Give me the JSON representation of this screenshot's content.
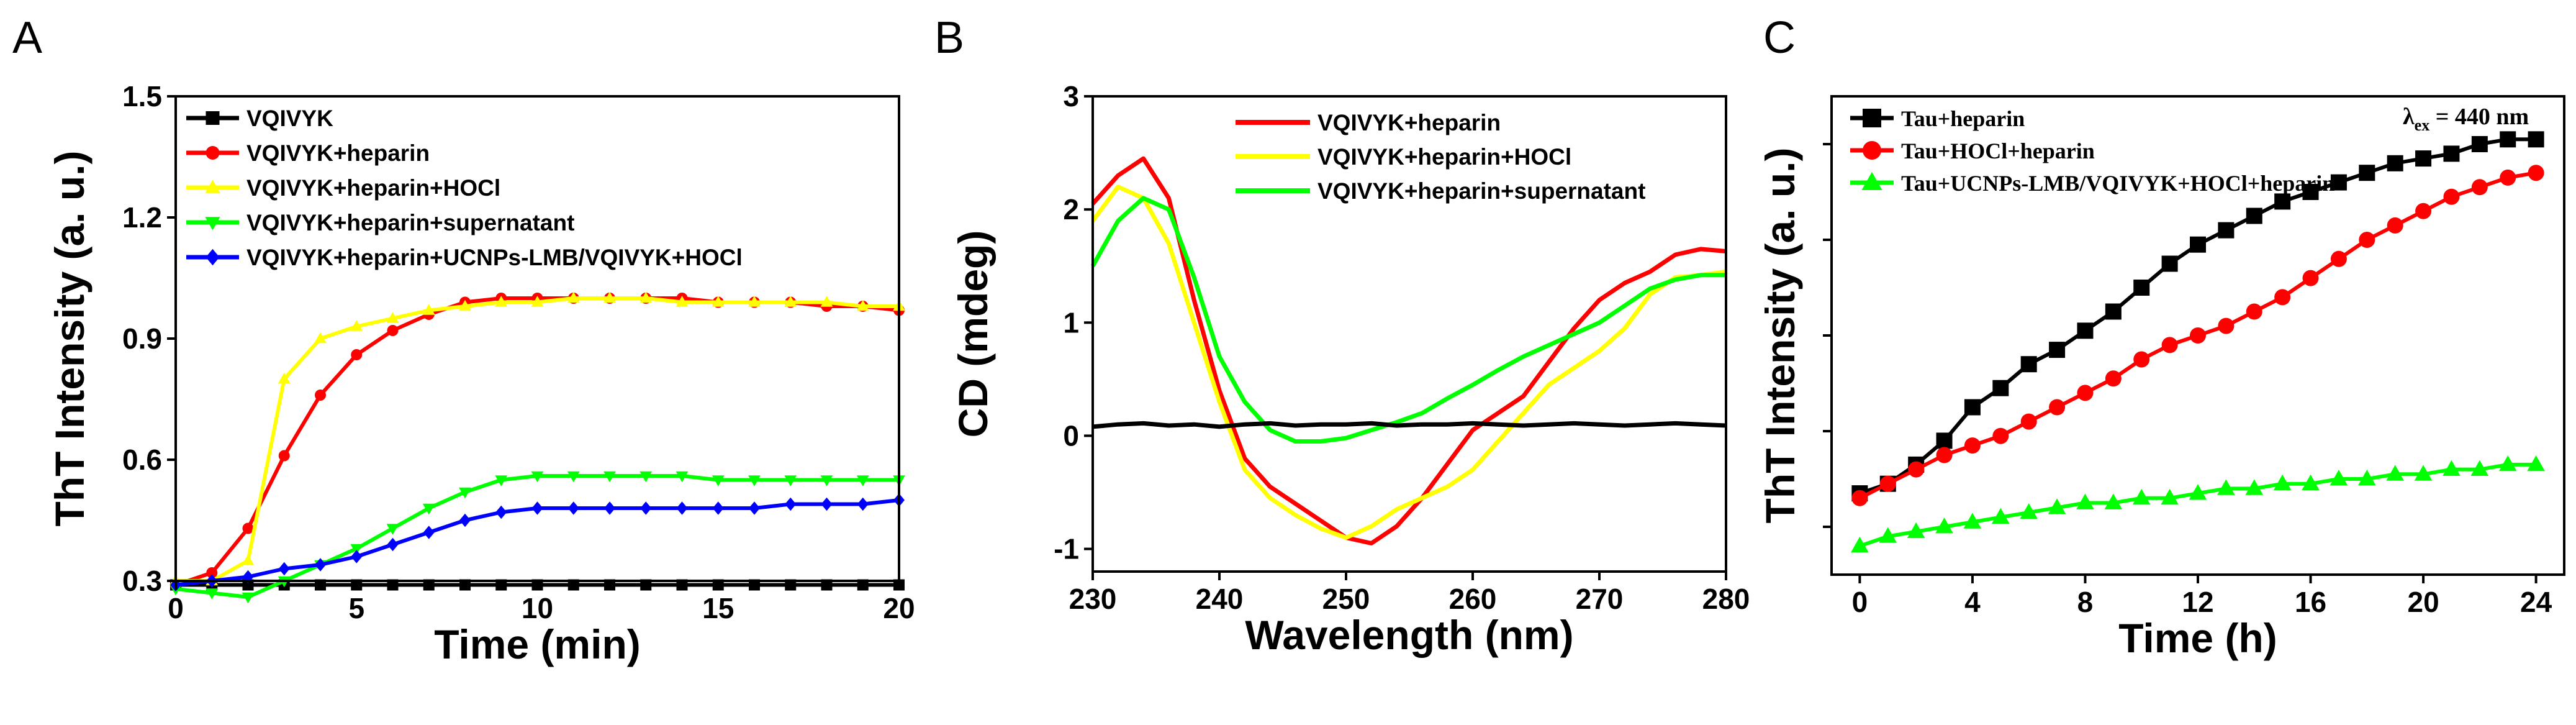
{
  "panels": [
    "A",
    "B",
    "C"
  ],
  "annotation_C": "λ",
  "annotation_C_sub": "ex",
  "annotation_C_value": " = 440 nm",
  "chart_data": [
    {
      "id": "A",
      "type": "line",
      "xlabel": "Time (min)",
      "ylabel": "ThT Intensity (a. u.)",
      "xlim": [
        0,
        20
      ],
      "ylim": [
        0.3,
        1.5
      ],
      "xticks": [
        0,
        5,
        10,
        15,
        20
      ],
      "yticks": [
        0.3,
        0.6,
        0.9,
        1.2,
        1.5
      ],
      "ytick_labels": [
        "0.3",
        "0.6",
        "0.9",
        "1.2",
        "1.5"
      ],
      "legend_position": "top-left",
      "x": [
        0,
        1,
        2,
        3,
        4,
        5,
        6,
        7,
        8,
        9,
        10,
        11,
        12,
        13,
        14,
        15,
        16,
        17,
        18,
        19,
        20
      ],
      "series": [
        {
          "name": "VQIVYK",
          "color": "#000000",
          "marker": "square",
          "values": [
            0.29,
            0.29,
            0.29,
            0.29,
            0.29,
            0.29,
            0.29,
            0.29,
            0.29,
            0.29,
            0.29,
            0.29,
            0.29,
            0.29,
            0.29,
            0.29,
            0.29,
            0.29,
            0.29,
            0.29,
            0.29
          ]
        },
        {
          "name": "VQIVYK+heparin",
          "color": "#ff0000",
          "marker": "circle",
          "values": [
            0.29,
            0.32,
            0.43,
            0.61,
            0.76,
            0.86,
            0.92,
            0.96,
            0.99,
            1.0,
            1.0,
            1.0,
            1.0,
            1.0,
            1.0,
            0.99,
            0.99,
            0.99,
            0.98,
            0.98,
            0.97
          ]
        },
        {
          "name": "VQIVYK+heparin+HOCl",
          "color": "#ffff00",
          "marker": "triangle-up",
          "values": [
            0.3,
            0.3,
            0.35,
            0.8,
            0.9,
            0.93,
            0.95,
            0.97,
            0.98,
            0.99,
            0.99,
            1.0,
            1.0,
            1.0,
            0.99,
            0.99,
            0.99,
            0.99,
            0.99,
            0.98,
            0.98
          ]
        },
        {
          "name": "VQIVYK+heparin+supernatant",
          "color": "#00ff00",
          "marker": "triangle-down",
          "values": [
            0.28,
            0.27,
            0.26,
            0.3,
            0.34,
            0.38,
            0.43,
            0.48,
            0.52,
            0.55,
            0.56,
            0.56,
            0.56,
            0.56,
            0.56,
            0.55,
            0.55,
            0.55,
            0.55,
            0.55,
            0.55
          ]
        },
        {
          "name": "VQIVYK+heparin+UCNPs-LMB/VQIVYK+HOCl",
          "color": "#0000ff",
          "marker": "diamond",
          "values": [
            0.29,
            0.3,
            0.31,
            0.33,
            0.34,
            0.36,
            0.39,
            0.42,
            0.45,
            0.47,
            0.48,
            0.48,
            0.48,
            0.48,
            0.48,
            0.48,
            0.48,
            0.49,
            0.49,
            0.49,
            0.5
          ]
        }
      ]
    },
    {
      "id": "B",
      "type": "line",
      "xlabel": "Wavelength (nm)",
      "ylabel": "CD (mdeg)",
      "xlim": [
        230,
        280
      ],
      "ylim": [
        -1.2,
        3
      ],
      "xticks": [
        230,
        240,
        250,
        260,
        270,
        280
      ],
      "yticks": [
        -1,
        0,
        1,
        2,
        3
      ],
      "ytick_labels": [
        "-1",
        "0",
        "1",
        "2",
        "3"
      ],
      "legend_position": "top-right",
      "x": [
        230,
        232,
        234,
        236,
        238,
        240,
        242,
        244,
        246,
        248,
        250,
        252,
        254,
        256,
        258,
        260,
        262,
        264,
        266,
        268,
        270,
        272,
        274,
        276,
        278,
        280
      ],
      "series": [
        {
          "name": "VQIVYK+heparin",
          "color": "#ff0000",
          "in_legend": true,
          "values": [
            2.05,
            2.3,
            2.45,
            2.1,
            1.2,
            0.4,
            -0.2,
            -0.45,
            -0.6,
            -0.75,
            -0.9,
            -0.95,
            -0.8,
            -0.55,
            -0.25,
            0.05,
            0.2,
            0.35,
            0.65,
            0.95,
            1.2,
            1.35,
            1.45,
            1.6,
            1.65,
            1.63
          ]
        },
        {
          "name": "VQIVYK+heparin+HOCl",
          "color": "#ffff00",
          "in_legend": true,
          "values": [
            1.9,
            2.2,
            2.1,
            1.7,
            1.0,
            0.3,
            -0.3,
            -0.55,
            -0.7,
            -0.82,
            -0.9,
            -0.8,
            -0.65,
            -0.55,
            -0.45,
            -0.3,
            -0.05,
            0.2,
            0.45,
            0.6,
            0.75,
            0.95,
            1.25,
            1.4,
            1.42,
            1.45
          ]
        },
        {
          "name": "VQIVYK+heparin+supernatant",
          "color": "#00ff00",
          "in_legend": true,
          "values": [
            1.5,
            1.9,
            2.1,
            2.0,
            1.4,
            0.7,
            0.3,
            0.05,
            -0.05,
            -0.05,
            -0.02,
            0.05,
            0.12,
            0.2,
            0.33,
            0.45,
            0.58,
            0.7,
            0.8,
            0.9,
            1.0,
            1.15,
            1.3,
            1.38,
            1.42,
            1.42
          ]
        },
        {
          "name": "baseline",
          "color": "#000000",
          "in_legend": false,
          "values": [
            0.08,
            0.1,
            0.11,
            0.09,
            0.1,
            0.08,
            0.1,
            0.11,
            0.09,
            0.1,
            0.1,
            0.11,
            0.09,
            0.1,
            0.1,
            0.11,
            0.1,
            0.09,
            0.1,
            0.11,
            0.1,
            0.09,
            0.1,
            0.11,
            0.1,
            0.09
          ]
        }
      ]
    },
    {
      "id": "C",
      "type": "line",
      "xlabel": "Time (h)",
      "ylabel": "ThT Intensity (a. u.)",
      "xlim": [
        -1,
        25
      ],
      "ylim": [
        0,
        1
      ],
      "xticks": [
        0,
        4,
        8,
        12,
        16,
        20,
        24
      ],
      "yticks": [
        0.1,
        0.3,
        0.5,
        0.7,
        0.9
      ],
      "ytick_labels": [
        "",
        "",
        "",
        "",
        ""
      ],
      "legend_position": "top-left",
      "x": [
        0,
        1,
        2,
        3,
        4,
        5,
        6,
        7,
        8,
        9,
        10,
        11,
        12,
        13,
        14,
        15,
        16,
        17,
        18,
        19,
        20,
        21,
        22,
        23,
        24
      ],
      "series": [
        {
          "name": "Tau+heparin",
          "color": "#000000",
          "marker": "square",
          "values": [
            0.17,
            0.19,
            0.23,
            0.28,
            0.35,
            0.39,
            0.44,
            0.47,
            0.51,
            0.55,
            0.6,
            0.65,
            0.69,
            0.72,
            0.75,
            0.78,
            0.8,
            0.82,
            0.84,
            0.86,
            0.87,
            0.88,
            0.9,
            0.91,
            0.91
          ]
        },
        {
          "name": "Tau+HOCl+heparin",
          "color": "#ff0000",
          "marker": "circle",
          "values": [
            0.16,
            0.19,
            0.22,
            0.25,
            0.27,
            0.29,
            0.32,
            0.35,
            0.38,
            0.41,
            0.45,
            0.48,
            0.5,
            0.52,
            0.55,
            0.58,
            0.62,
            0.66,
            0.7,
            0.73,
            0.76,
            0.79,
            0.81,
            0.83,
            0.84
          ]
        },
        {
          "name": "Tau+UCNPs-LMB/VQIVYK+HOCl+heparin",
          "color": "#00ff00",
          "marker": "triangle-up",
          "values": [
            0.06,
            0.08,
            0.09,
            0.1,
            0.11,
            0.12,
            0.13,
            0.14,
            0.15,
            0.15,
            0.16,
            0.16,
            0.17,
            0.18,
            0.18,
            0.19,
            0.19,
            0.2,
            0.2,
            0.21,
            0.21,
            0.22,
            0.22,
            0.23,
            0.23
          ]
        }
      ]
    }
  ]
}
